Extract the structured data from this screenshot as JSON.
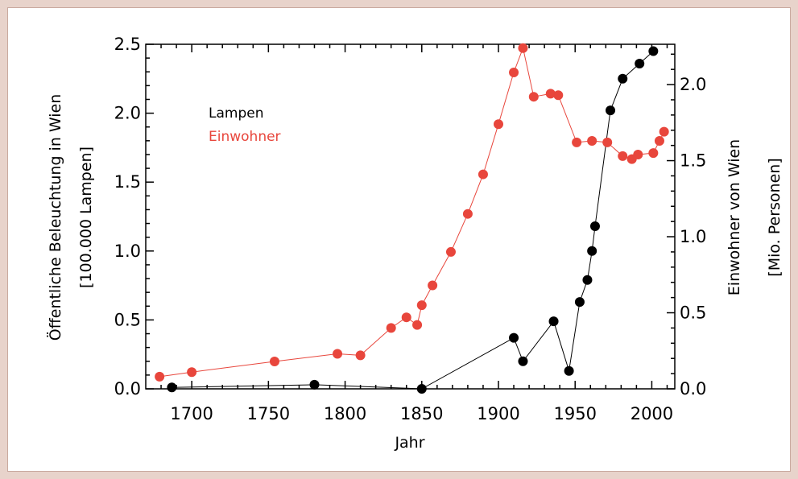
{
  "chart_data": {
    "type": "line",
    "x_label": "Jahr",
    "x_range": [
      1670,
      2015
    ],
    "x_ticks": [
      "1700",
      "1750",
      "1800",
      "1850",
      "1900",
      "1950",
      "2000"
    ],
    "y_left_label_line1": "Öffentliche Beleuchtung in Wien",
    "y_left_label_line2": "[100.000 Lampen]",
    "y_left_range": [
      0,
      2.5
    ],
    "y_left_ticks": [
      "0.0",
      "0.5",
      "1.0",
      "1.5",
      "2.0",
      "2.5"
    ],
    "y_right_label_line1": "Einwohner von Wien",
    "y_right_label_line2": "[Mio. Personen]",
    "y_right_range": [
      0,
      2.265
    ],
    "y_right_ticks": [
      "0.0",
      "0.5",
      "1.0",
      "1.5",
      "2.0"
    ],
    "series": [
      {
        "name": "Lampen",
        "axis": "left",
        "color": "#000000",
        "points": [
          [
            1687,
            0.01
          ],
          [
            1780,
            0.03
          ],
          [
            1850,
            0.0
          ],
          [
            1910,
            0.37
          ],
          [
            1916,
            0.2
          ],
          [
            1936,
            0.49
          ],
          [
            1946,
            0.13
          ],
          [
            1953,
            0.63
          ],
          [
            1958,
            0.79
          ],
          [
            1961,
            1.0
          ],
          [
            1963,
            1.18
          ],
          [
            1973,
            2.02
          ],
          [
            1981,
            2.25
          ],
          [
            1992,
            2.36
          ],
          [
            2001,
            2.45
          ]
        ]
      },
      {
        "name": "Einwohner",
        "axis": "right",
        "color": "#e8463c",
        "points": [
          [
            1679,
            0.08
          ],
          [
            1700,
            0.11
          ],
          [
            1754,
            0.18
          ],
          [
            1795,
            0.23
          ],
          [
            1810,
            0.22
          ],
          [
            1830,
            0.4
          ],
          [
            1840,
            0.47
          ],
          [
            1847,
            0.42
          ],
          [
            1850,
            0.55
          ],
          [
            1857,
            0.68
          ],
          [
            1869,
            0.9
          ],
          [
            1880,
            1.15
          ],
          [
            1890,
            1.41
          ],
          [
            1900,
            1.74
          ],
          [
            1910,
            2.08
          ],
          [
            1916,
            2.24
          ],
          [
            1923,
            1.92
          ],
          [
            1934,
            1.94
          ],
          [
            1939,
            1.93
          ],
          [
            1951,
            1.62
          ],
          [
            1961,
            1.63
          ],
          [
            1971,
            1.62
          ],
          [
            1981,
            1.53
          ],
          [
            1987,
            1.51
          ],
          [
            1991,
            1.54
          ],
          [
            2001,
            1.55
          ],
          [
            2005,
            1.63
          ],
          [
            2008,
            1.69
          ]
        ]
      }
    ]
  }
}
